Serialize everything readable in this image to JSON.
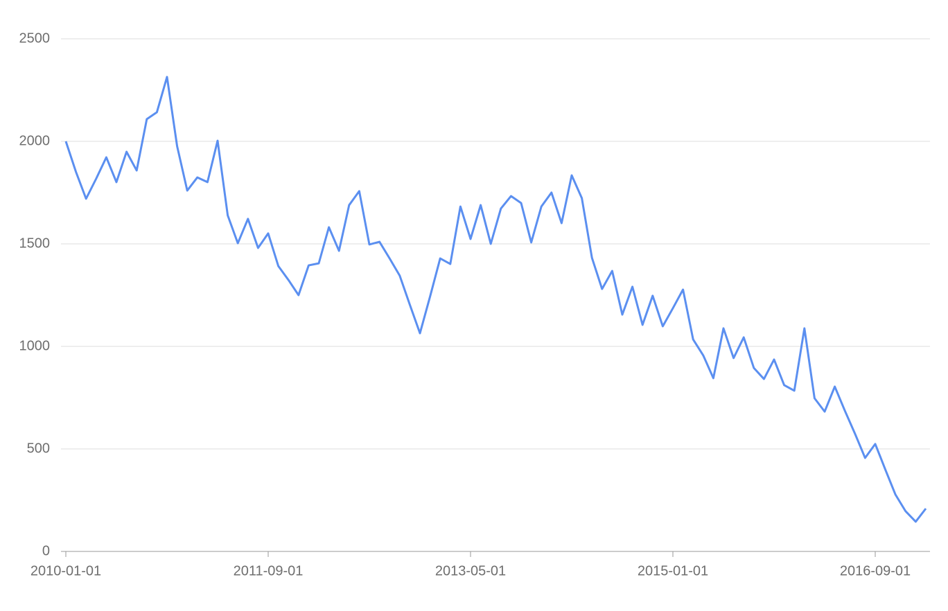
{
  "chart_data": {
    "type": "line",
    "x": [
      "2010-01-01",
      "2010-02-01",
      "2010-03-01",
      "2010-04-01",
      "2010-05-01",
      "2010-06-01",
      "2010-07-01",
      "2010-08-01",
      "2010-09-01",
      "2010-10-01",
      "2010-11-01",
      "2010-12-01",
      "2011-01-01",
      "2011-02-01",
      "2011-03-01",
      "2011-04-01",
      "2011-05-01",
      "2011-06-01",
      "2011-07-01",
      "2011-08-01",
      "2011-09-01",
      "2011-10-01",
      "2011-11-01",
      "2011-12-01",
      "2012-01-01",
      "2012-02-01",
      "2012-03-01",
      "2012-04-01",
      "2012-05-01",
      "2012-06-01",
      "2012-07-01",
      "2012-08-01",
      "2012-09-01",
      "2012-10-01",
      "2012-11-01",
      "2012-12-01",
      "2013-01-01",
      "2013-02-01",
      "2013-03-01",
      "2013-04-01",
      "2013-05-01",
      "2013-06-01",
      "2013-07-01",
      "2013-08-01",
      "2013-09-01",
      "2013-10-01",
      "2013-11-01",
      "2013-12-01",
      "2014-01-01",
      "2014-02-01",
      "2014-03-01",
      "2014-04-01",
      "2014-05-01",
      "2014-06-01",
      "2014-07-01",
      "2014-08-01",
      "2014-09-01",
      "2014-10-01",
      "2014-11-01",
      "2014-12-01",
      "2015-01-01",
      "2015-02-01",
      "2015-03-01",
      "2015-04-01",
      "2015-05-01",
      "2015-06-01",
      "2015-07-01",
      "2015-08-01",
      "2015-09-01",
      "2015-10-01",
      "2015-11-01",
      "2015-12-01",
      "2016-01-01",
      "2016-02-01",
      "2016-03-01",
      "2016-04-01",
      "2016-05-01",
      "2016-06-01",
      "2016-07-01",
      "2016-08-01",
      "2016-09-01",
      "2016-10-01",
      "2016-11-01",
      "2016-12-01",
      "2017-01-01",
      "2017-02-01"
    ],
    "series": [
      {
        "color": "#5b8ff0",
        "values": [
          2000,
          1851,
          1720,
          1818,
          1922,
          1801,
          1949,
          1858,
          2108,
          2142,
          2314,
          1976,
          1760,
          1824,
          1801,
          2003,
          1639,
          1503,
          1622,
          1480,
          1551,
          1392,
          1324,
          1250,
          1395,
          1405,
          1581,
          1466,
          1689,
          1757,
          1497,
          1510,
          1429,
          1345,
          1203,
          1064,
          1243,
          1429,
          1402,
          1682,
          1524,
          1689,
          1500,
          1672,
          1733,
          1699,
          1507,
          1682,
          1750,
          1601,
          1834,
          1723,
          1432,
          1280,
          1368,
          1155,
          1291,
          1105,
          1247,
          1098,
          1186,
          1277,
          1034,
          956,
          845,
          1088,
          943,
          1044,
          895,
          841,
          936,
          811,
          784,
          1088,
          747,
          682,
          804,
          686,
          574,
          456,
          524,
          399,
          277,
          196,
          145,
          209
        ]
      }
    ],
    "xticks": [
      "2010-01-01",
      "2011-09-01",
      "2013-05-01",
      "2015-01-01",
      "2016-09-01"
    ],
    "ylim": [
      0,
      2500
    ],
    "yticks": [
      0,
      500,
      1000,
      1500,
      2000,
      2500
    ],
    "grid": true
  }
}
